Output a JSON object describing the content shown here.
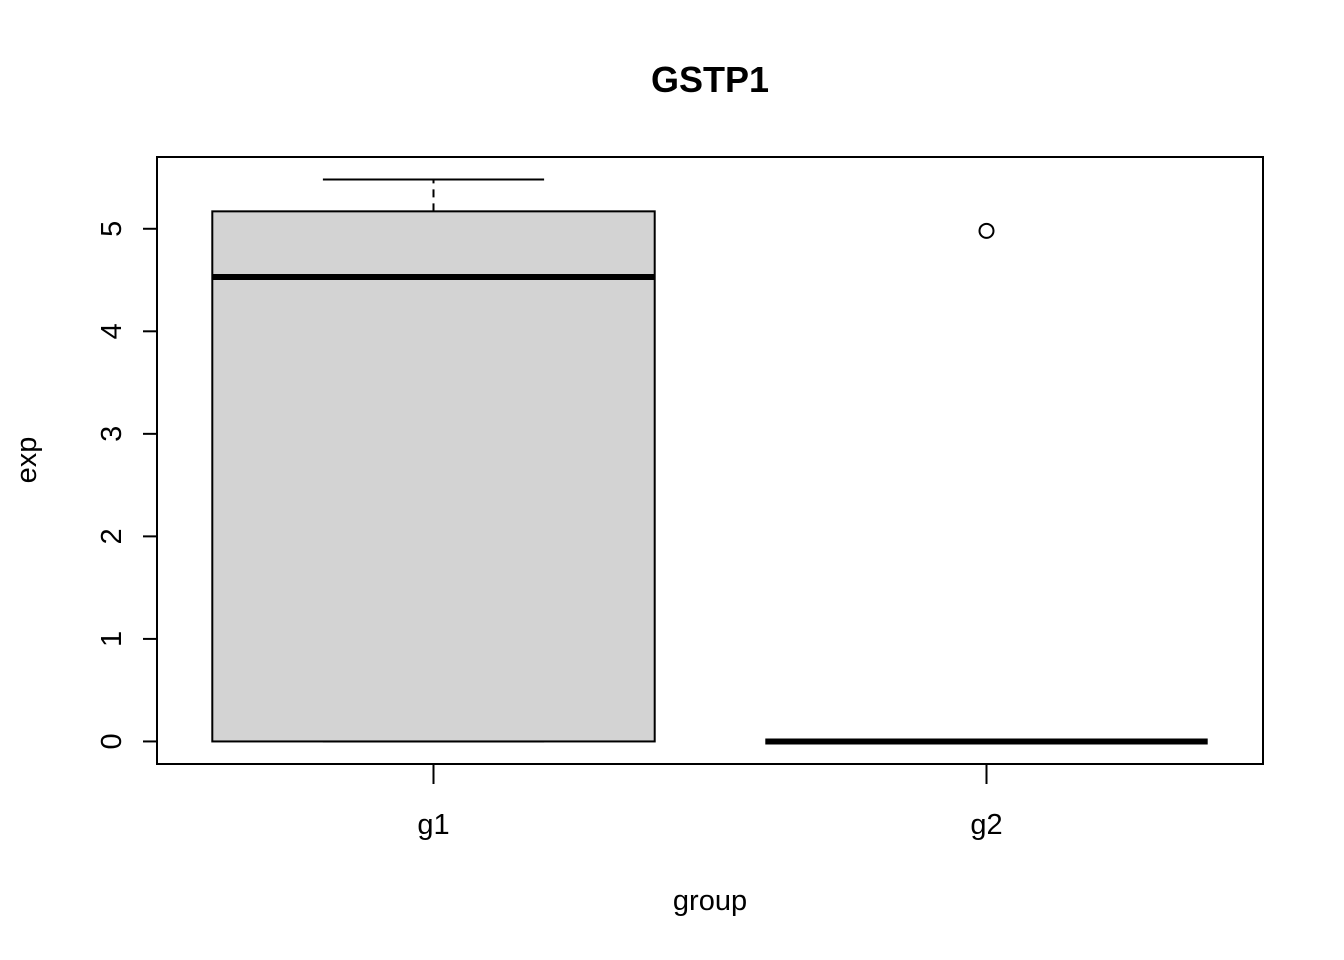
{
  "chart_data": {
    "type": "box",
    "title": "GSTP1",
    "xlabel": "group",
    "ylabel": "exp",
    "categories": [
      "g1",
      "g2"
    ],
    "ylim": [
      -0.22,
      5.7
    ],
    "yticks": [
      0,
      1,
      2,
      3,
      4,
      5
    ],
    "boxes": [
      {
        "category": "g1",
        "whisker_low": 0,
        "q1": 0,
        "median": 4.53,
        "q3": 5.17,
        "whisker_high": 5.48,
        "outliers": []
      },
      {
        "category": "g2",
        "whisker_low": 0,
        "q1": 0,
        "median": 0,
        "q3": 0,
        "whisker_high": 0,
        "outliers": [
          4.98
        ]
      }
    ],
    "box_fill": "#d3d3d3",
    "grid": false,
    "legend": "none"
  }
}
